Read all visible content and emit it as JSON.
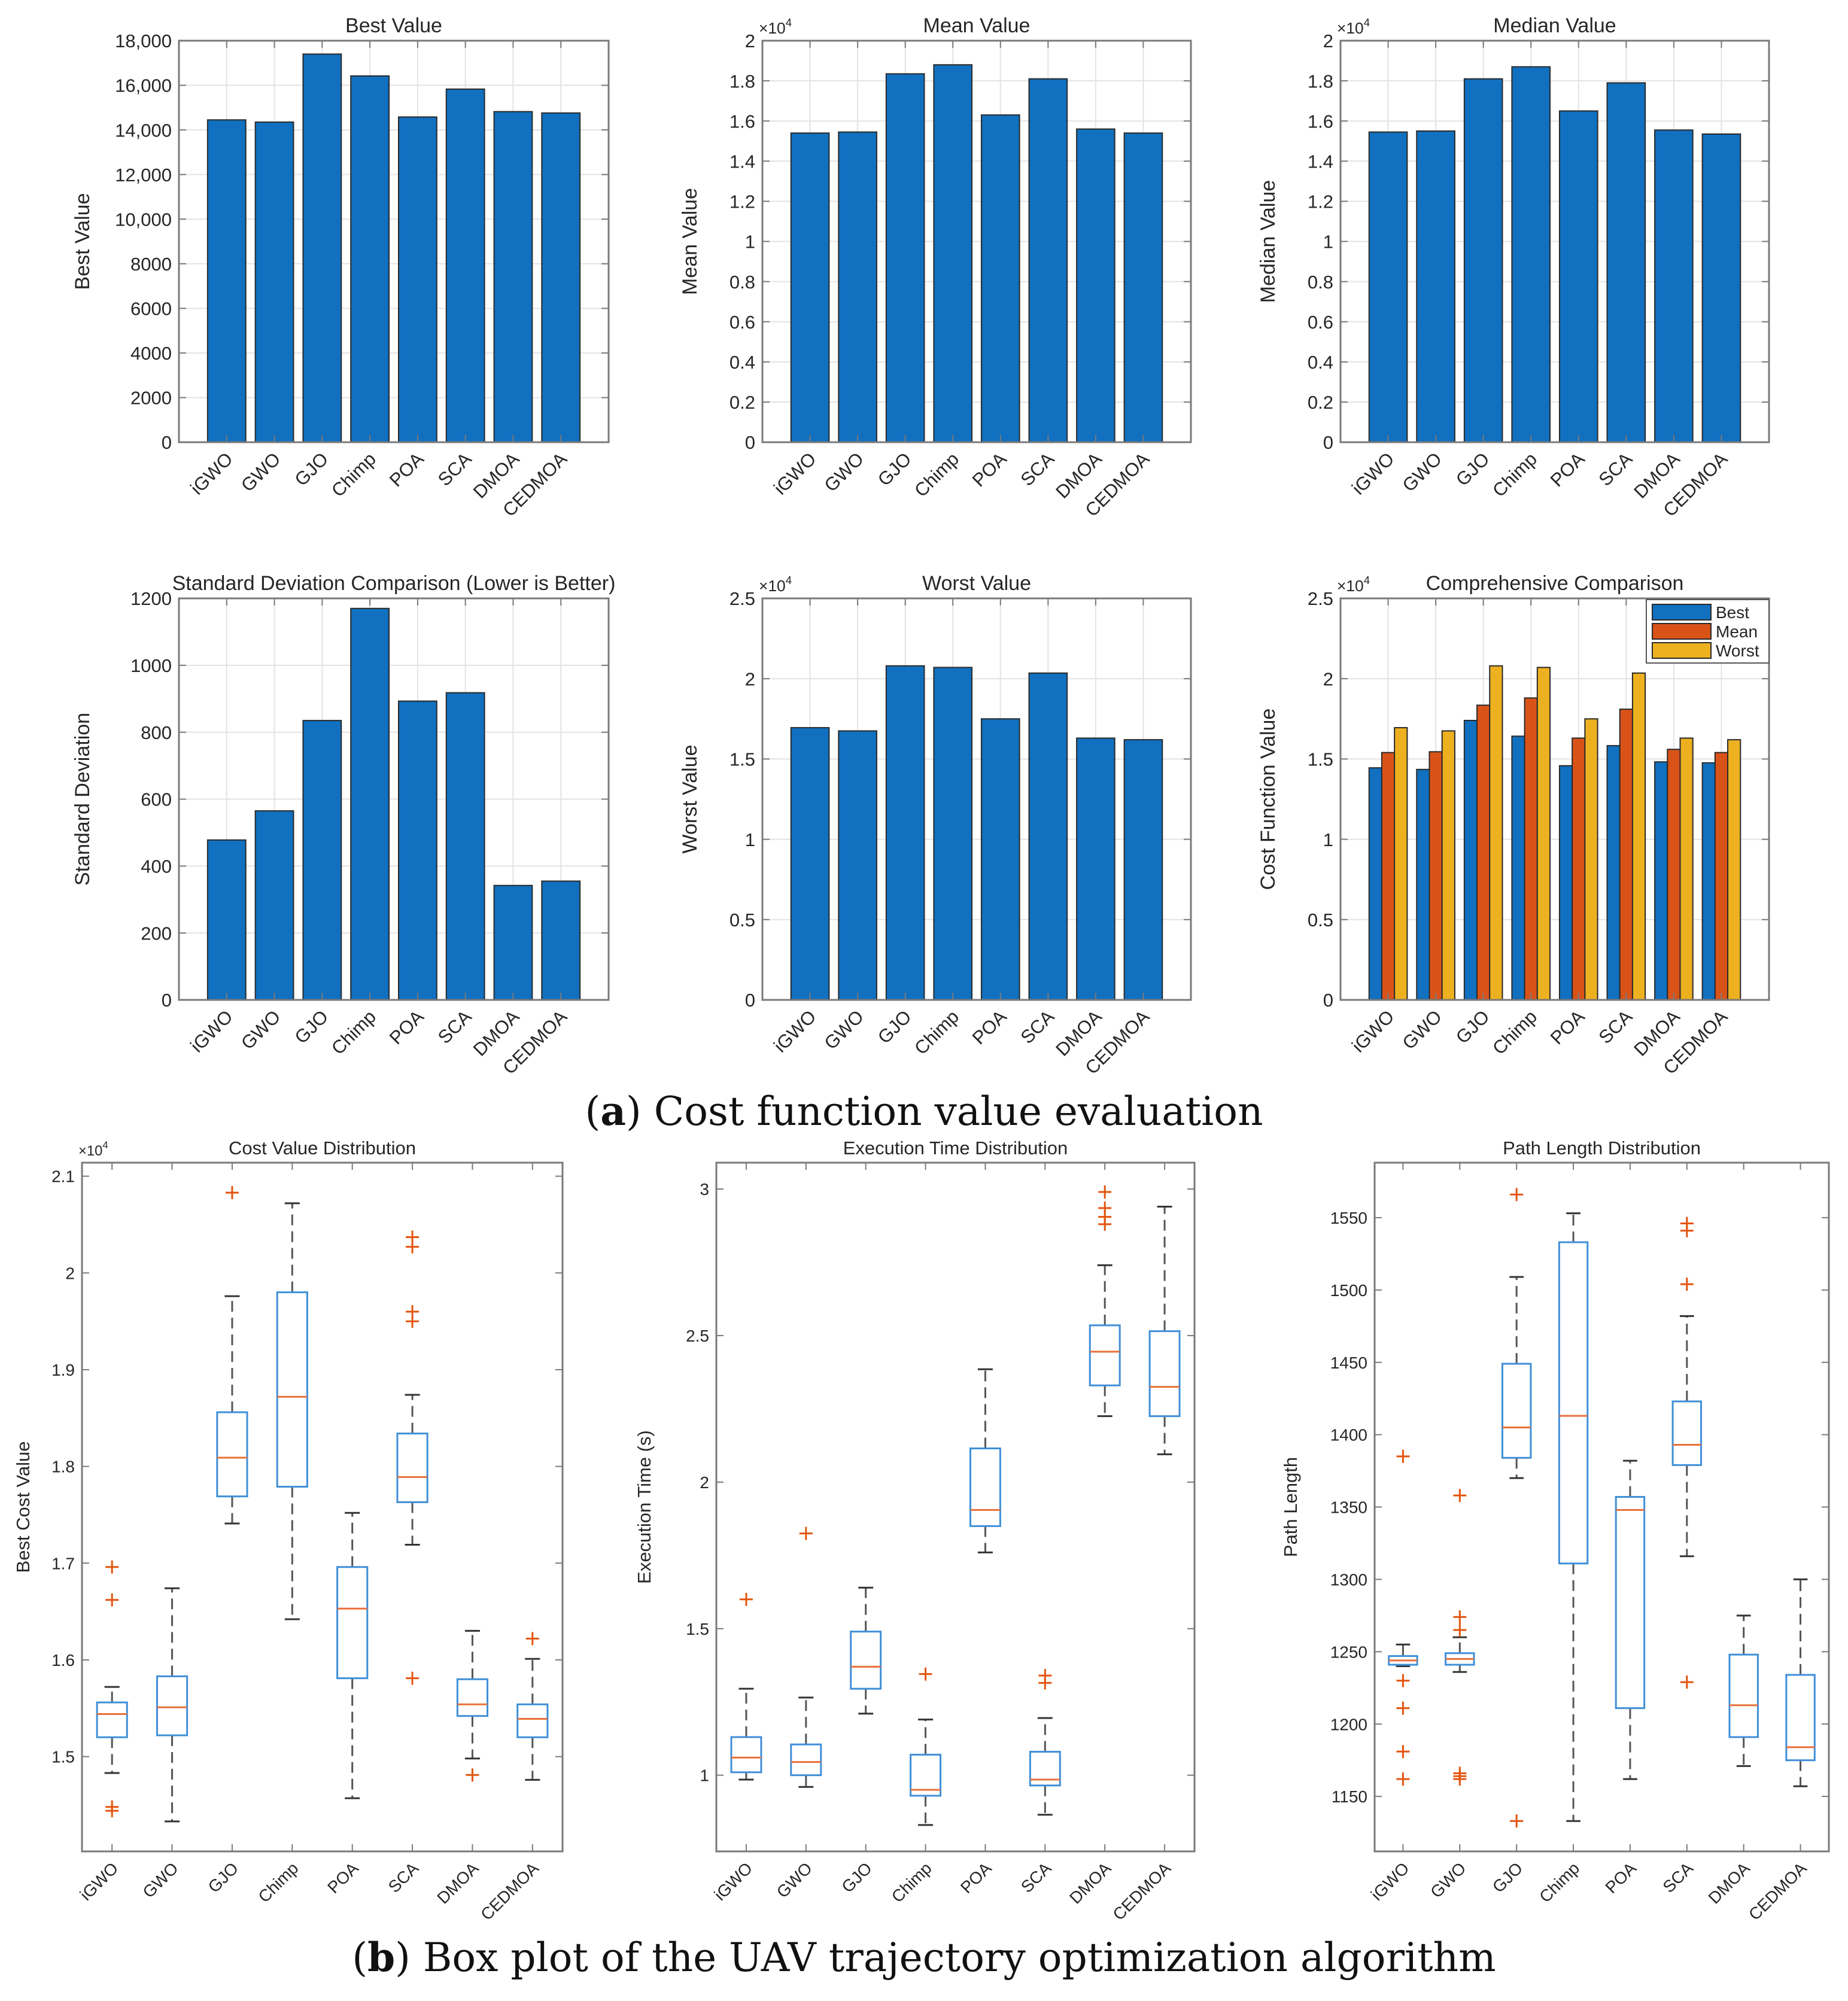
{
  "captions": {
    "a": {
      "label": "a",
      "text": "Cost function value evaluation"
    },
    "b": {
      "label": "b",
      "text": "Box plot of the UAV trajectory optimization algorithm"
    }
  },
  "colors": {
    "bar": "#1170BF",
    "best": "#1170BF",
    "mean": "#D95319",
    "worst": "#EDB120",
    "box": "#3F8FD8",
    "median": "#E8703A",
    "outlier": "#E4540E",
    "whisker": "#555555",
    "axis": "#7a7a7a",
    "grid": "#e3e3e3"
  },
  "chart_data": [
    {
      "id": "best",
      "type": "bar",
      "title": "Best Value",
      "xlabel": "",
      "ylabel": "Best Value",
      "exponent": null,
      "categories": [
        "iGWO",
        "GWO",
        "GJO",
        "Chimp",
        "POA",
        "SCA",
        "DMOA",
        "CEDMOA"
      ],
      "values": [
        14450,
        14350,
        17400,
        16420,
        14580,
        15830,
        14820,
        14760
      ],
      "ylim": [
        0,
        18000
      ],
      "yticks": [
        0,
        2000,
        4000,
        6000,
        8000,
        10000,
        12000,
        14000,
        16000,
        18000
      ],
      "ytick_labels": [
        "0",
        "2000",
        "4000",
        "6000",
        "8000",
        "10,000",
        "12,000",
        "14,000",
        "16,000",
        "18,000"
      ],
      "grid": true
    },
    {
      "id": "mean",
      "type": "bar",
      "title": "Mean Value",
      "xlabel": "",
      "ylabel": "Mean Value",
      "exponent": "4",
      "categories": [
        "iGWO",
        "GWO",
        "GJO",
        "Chimp",
        "POA",
        "SCA",
        "DMOA",
        "CEDMOA"
      ],
      "values": [
        1.54,
        1.545,
        1.835,
        1.88,
        1.63,
        1.81,
        1.56,
        1.54
      ],
      "ylim": [
        0,
        2
      ],
      "yticks": [
        0,
        0.2,
        0.4,
        0.6,
        0.8,
        1,
        1.2,
        1.4,
        1.6,
        1.8,
        2
      ],
      "ytick_labels": [
        "0",
        "0.2",
        "0.4",
        "0.6",
        "0.8",
        "1",
        "1.2",
        "1.4",
        "1.6",
        "1.8",
        "2"
      ],
      "grid": true
    },
    {
      "id": "median",
      "type": "bar",
      "title": "Median Value",
      "xlabel": "",
      "ylabel": "Median Value",
      "exponent": "4",
      "categories": [
        "iGWO",
        "GWO",
        "GJO",
        "Chimp",
        "POA",
        "SCA",
        "DMOA",
        "CEDMOA"
      ],
      "values": [
        1.545,
        1.55,
        1.81,
        1.87,
        1.65,
        1.79,
        1.555,
        1.535
      ],
      "ylim": [
        0,
        2
      ],
      "yticks": [
        0,
        0.2,
        0.4,
        0.6,
        0.8,
        1,
        1.2,
        1.4,
        1.6,
        1.8,
        2
      ],
      "ytick_labels": [
        "0",
        "0.2",
        "0.4",
        "0.6",
        "0.8",
        "1",
        "1.2",
        "1.4",
        "1.6",
        "1.8",
        "2"
      ],
      "grid": true
    },
    {
      "id": "std",
      "type": "bar",
      "title": "Standard Deviation Comparison (Lower is Better)",
      "xlabel": "",
      "ylabel": "Standard Deviation",
      "exponent": null,
      "categories": [
        "iGWO",
        "GWO",
        "GJO",
        "Chimp",
        "POA",
        "SCA",
        "DMOA",
        "CEDMOA"
      ],
      "values": [
        478,
        565,
        835,
        1170,
        893,
        918,
        342,
        355
      ],
      "ylim": [
        0,
        1200
      ],
      "yticks": [
        0,
        200,
        400,
        600,
        800,
        1000,
        1200
      ],
      "ytick_labels": [
        "0",
        "200",
        "400",
        "600",
        "800",
        "1000",
        "1200"
      ],
      "grid": true
    },
    {
      "id": "worst",
      "type": "bar",
      "title": "Worst Value",
      "xlabel": "",
      "ylabel": "Worst Value",
      "exponent": "4",
      "categories": [
        "iGWO",
        "GWO",
        "GJO",
        "Chimp",
        "POA",
        "SCA",
        "DMOA",
        "CEDMOA"
      ],
      "values": [
        1.695,
        1.675,
        2.08,
        2.07,
        1.75,
        2.035,
        1.63,
        1.62
      ],
      "ylim": [
        0,
        2.5
      ],
      "yticks": [
        0,
        0.5,
        1,
        1.5,
        2,
        2.5
      ],
      "ytick_labels": [
        "0",
        "0.5",
        "1",
        "1.5",
        "2",
        "2.5"
      ],
      "grid": true
    },
    {
      "id": "comprehensive",
      "type": "bar",
      "grouped": true,
      "title": "Comprehensive Comparison",
      "xlabel": "",
      "ylabel": "Cost Function Value",
      "exponent": "4",
      "categories": [
        "iGWO",
        "GWO",
        "GJO",
        "Chimp",
        "POA",
        "SCA",
        "DMOA",
        "CEDMOA"
      ],
      "series": [
        {
          "name": "Best",
          "color_key": "best",
          "values": [
            1.445,
            1.435,
            1.74,
            1.642,
            1.458,
            1.583,
            1.482,
            1.476
          ]
        },
        {
          "name": "Mean",
          "color_key": "mean",
          "values": [
            1.54,
            1.545,
            1.835,
            1.88,
            1.63,
            1.81,
            1.56,
            1.54
          ]
        },
        {
          "name": "Worst",
          "color_key": "worst",
          "values": [
            1.695,
            1.675,
            2.08,
            2.07,
            1.75,
            2.035,
            1.63,
            1.62
          ]
        }
      ],
      "legend": "top-right",
      "ylim": [
        0,
        2.5
      ],
      "yticks": [
        0,
        0.5,
        1,
        1.5,
        2,
        2.5
      ],
      "ytick_labels": [
        "0",
        "0.5",
        "1",
        "1.5",
        "2",
        "2.5"
      ],
      "grid": true
    },
    {
      "id": "cost-box",
      "type": "box",
      "title": "Cost Value Distribution",
      "xlabel": "",
      "ylabel": "Best Cost Value",
      "exponent": "4",
      "categories": [
        "iGWO",
        "GWO",
        "GJO",
        "Chimp",
        "POA",
        "SCA",
        "DMOA",
        "CEDMOA"
      ],
      "boxes": [
        {
          "min": 1.483,
          "q1": 1.52,
          "median": 1.544,
          "q3": 1.556,
          "max": 1.572,
          "outliers": [
            1.696,
            1.662,
            1.448,
            1.444
          ]
        },
        {
          "min": 1.433,
          "q1": 1.522,
          "median": 1.551,
          "q3": 1.583,
          "max": 1.674,
          "outliers": []
        },
        {
          "min": 1.741,
          "q1": 1.769,
          "median": 1.809,
          "q3": 1.856,
          "max": 1.976,
          "outliers": [
            2.083
          ]
        },
        {
          "min": 1.642,
          "q1": 1.779,
          "median": 1.872,
          "q3": 1.98,
          "max": 2.072,
          "outliers": []
        },
        {
          "min": 1.457,
          "q1": 1.581,
          "median": 1.653,
          "q3": 1.696,
          "max": 1.752,
          "outliers": []
        },
        {
          "min": 1.719,
          "q1": 1.763,
          "median": 1.789,
          "q3": 1.834,
          "max": 1.874,
          "outliers": [
            2.037,
            2.027,
            1.96,
            1.95,
            1.581
          ]
        },
        {
          "min": 1.498,
          "q1": 1.542,
          "median": 1.554,
          "q3": 1.58,
          "max": 1.63,
          "outliers": [
            1.481
          ]
        },
        {
          "min": 1.476,
          "q1": 1.52,
          "median": 1.539,
          "q3": 1.554,
          "max": 1.601,
          "outliers": [
            1.622
          ]
        }
      ],
      "ylim": [
        1.402,
        2.114
      ],
      "yticks": [
        1.5,
        1.6,
        1.7,
        1.8,
        1.9,
        2,
        2.1
      ],
      "ytick_labels": [
        "1.5",
        "1.6",
        "1.7",
        "1.8",
        "1.9",
        "2",
        "2.1"
      ],
      "grid": false
    },
    {
      "id": "time-box",
      "type": "box",
      "title": "Execution Time Distribution",
      "xlabel": "",
      "ylabel": "Execution Time (s)",
      "exponent": null,
      "categories": [
        "iGWO",
        "GWO",
        "GJO",
        "Chimp",
        "POA",
        "SCA",
        "DMOA",
        "CEDMOA"
      ],
      "boxes": [
        {
          "min": 0.985,
          "q1": 1.01,
          "median": 1.06,
          "q3": 1.13,
          "max": 1.295,
          "outliers": [
            1.6
          ]
        },
        {
          "min": 0.96,
          "q1": 1.0,
          "median": 1.045,
          "q3": 1.105,
          "max": 1.265,
          "outliers": [
            1.825
          ]
        },
        {
          "min": 1.21,
          "q1": 1.295,
          "median": 1.37,
          "q3": 1.49,
          "max": 1.64,
          "outliers": []
        },
        {
          "min": 0.83,
          "q1": 0.93,
          "median": 0.95,
          "q3": 1.07,
          "max": 1.19,
          "outliers": [
            1.345
          ]
        },
        {
          "min": 1.76,
          "q1": 1.85,
          "median": 1.905,
          "q3": 2.115,
          "max": 2.385,
          "outliers": []
        },
        {
          "min": 0.865,
          "q1": 0.965,
          "median": 0.985,
          "q3": 1.08,
          "max": 1.195,
          "outliers": [
            1.34,
            1.315
          ]
        },
        {
          "min": 2.225,
          "q1": 2.33,
          "median": 2.445,
          "q3": 2.535,
          "max": 2.74,
          "outliers": [
            2.99,
            2.935,
            2.905,
            2.88
          ]
        },
        {
          "min": 2.095,
          "q1": 2.225,
          "median": 2.325,
          "q3": 2.515,
          "max": 2.94,
          "outliers": []
        }
      ],
      "ylim": [
        0.74,
        3.09
      ],
      "yticks": [
        1,
        1.5,
        2,
        2.5,
        3
      ],
      "ytick_labels": [
        "1",
        "1.5",
        "2",
        "2.5",
        "3"
      ],
      "grid": false
    },
    {
      "id": "path-box",
      "type": "box",
      "title": "Path Length Distribution",
      "xlabel": "",
      "ylabel": "Path Length",
      "exponent": null,
      "categories": [
        "iGWO",
        "GWO",
        "GJO",
        "Chimp",
        "POA",
        "SCA",
        "DMOA",
        "CEDMOA"
      ],
      "boxes": [
        {
          "min": 1240,
          "q1": 1241,
          "median": 1244,
          "q3": 1247,
          "max": 1255,
          "outliers": [
            1385,
            1230,
            1211,
            1181,
            1162
          ]
        },
        {
          "min": 1236,
          "q1": 1241,
          "median": 1245,
          "q3": 1249,
          "max": 1260,
          "outliers": [
            1358,
            1274,
            1265,
            1166,
            1164,
            1162
          ]
        },
        {
          "min": 1370,
          "q1": 1384,
          "median": 1405,
          "q3": 1449,
          "max": 1509,
          "outliers": [
            1566,
            1133
          ]
        },
        {
          "min": 1133,
          "q1": 1311,
          "median": 1413,
          "q3": 1533,
          "max": 1553,
          "outliers": []
        },
        {
          "min": 1162,
          "q1": 1211,
          "median": 1348,
          "q3": 1357,
          "max": 1382,
          "outliers": []
        },
        {
          "min": 1316,
          "q1": 1379,
          "median": 1393,
          "q3": 1423,
          "max": 1482,
          "outliers": [
            1546,
            1541,
            1504,
            1229
          ]
        },
        {
          "min": 1171,
          "q1": 1191,
          "median": 1213,
          "q3": 1248,
          "max": 1275,
          "outliers": []
        },
        {
          "min": 1157,
          "q1": 1175,
          "median": 1184,
          "q3": 1234,
          "max": 1300,
          "outliers": []
        }
      ],
      "ylim": [
        1112,
        1588
      ],
      "yticks": [
        1150,
        1200,
        1250,
        1300,
        1350,
        1400,
        1450,
        1500,
        1550
      ],
      "ytick_labels": [
        "1150",
        "1200",
        "1250",
        "1300",
        "1350",
        "1400",
        "1450",
        "1500",
        "1550"
      ],
      "grid": false
    }
  ]
}
